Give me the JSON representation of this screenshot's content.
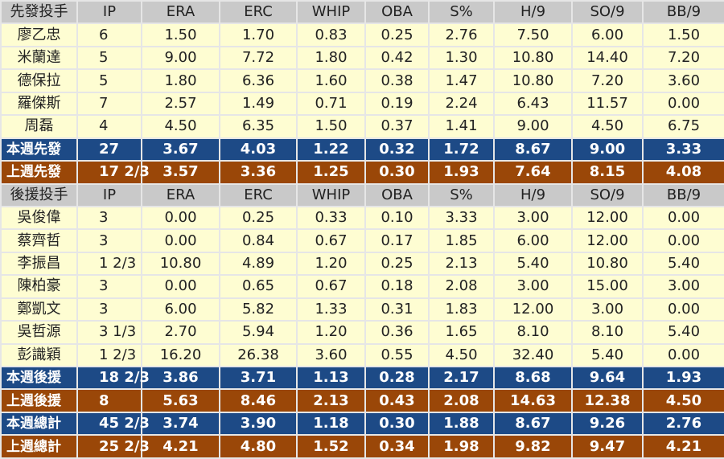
{
  "columns": [
    "IP",
    "ERA",
    "ERC",
    "WHIP",
    "OBA",
    "S%",
    "H/9",
    "SO/9",
    "BB/9"
  ],
  "colors": {
    "header": "#c9c9c9",
    "player": "#fefdd2",
    "this_week": "#1d4a86",
    "last_week": "#9a4708"
  },
  "rows": [
    {
      "type": "hdr",
      "cells": [
        "先發投手",
        "IP",
        "ERA",
        "ERC",
        "WHIP",
        "OBA",
        "S%",
        "H/9",
        "SO/9",
        "BB/9"
      ]
    },
    {
      "type": "player",
      "cells": [
        "廖乙忠",
        "6",
        "1.50",
        "1.70",
        "0.83",
        "0.25",
        "2.76",
        "7.50",
        "6.00",
        "1.50"
      ]
    },
    {
      "type": "player",
      "cells": [
        "米蘭達",
        "5",
        "9.00",
        "7.72",
        "1.80",
        "0.42",
        "1.30",
        "10.80",
        "14.40",
        "7.20"
      ]
    },
    {
      "type": "player",
      "cells": [
        "德保拉",
        "5",
        "1.80",
        "6.36",
        "1.60",
        "0.38",
        "1.47",
        "10.80",
        "7.20",
        "3.60"
      ]
    },
    {
      "type": "player",
      "cells": [
        "羅傑斯",
        "7",
        "2.57",
        "1.49",
        "0.71",
        "0.19",
        "2.24",
        "6.43",
        "11.57",
        "0.00"
      ]
    },
    {
      "type": "player",
      "cells": [
        "周磊",
        "4",
        "4.50",
        "6.35",
        "1.50",
        "0.37",
        "1.41",
        "9.00",
        "4.50",
        "6.75"
      ]
    },
    {
      "type": "blue",
      "cells": [
        "本週先發",
        "27",
        "3.67",
        "4.03",
        "1.22",
        "0.32",
        "1.72",
        "8.67",
        "9.00",
        "3.33"
      ]
    },
    {
      "type": "brown",
      "cells": [
        "上週先發",
        "17 2/3",
        "3.57",
        "3.36",
        "1.25",
        "0.30",
        "1.93",
        "7.64",
        "8.15",
        "4.08"
      ]
    },
    {
      "type": "hdr",
      "cells": [
        "後援投手",
        "IP",
        "ERA",
        "ERC",
        "WHIP",
        "OBA",
        "S%",
        "H/9",
        "SO/9",
        "BB/9"
      ]
    },
    {
      "type": "player",
      "cells": [
        "吳俊偉",
        "3",
        "0.00",
        "0.25",
        "0.33",
        "0.10",
        "3.33",
        "3.00",
        "12.00",
        "0.00"
      ]
    },
    {
      "type": "player",
      "cells": [
        "蔡齊哲",
        "3",
        "0.00",
        "0.84",
        "0.67",
        "0.17",
        "1.85",
        "6.00",
        "12.00",
        "0.00"
      ]
    },
    {
      "type": "player",
      "cells": [
        "李振昌",
        "1 2/3",
        "10.80",
        "4.89",
        "1.20",
        "0.25",
        "2.13",
        "5.40",
        "10.80",
        "5.40"
      ]
    },
    {
      "type": "player",
      "cells": [
        "陳柏豪",
        "3",
        "0.00",
        "0.65",
        "0.67",
        "0.18",
        "2.08",
        "3.00",
        "15.00",
        "3.00"
      ]
    },
    {
      "type": "player",
      "cells": [
        "鄭凱文",
        "3",
        "6.00",
        "5.82",
        "1.33",
        "0.31",
        "1.83",
        "12.00",
        "3.00",
        "0.00"
      ]
    },
    {
      "type": "player",
      "cells": [
        "吳哲源",
        "3 1/3",
        "2.70",
        "5.94",
        "1.20",
        "0.36",
        "1.65",
        "8.10",
        "8.10",
        "5.40"
      ]
    },
    {
      "type": "player",
      "cells": [
        "彭識穎",
        "1 2/3",
        "16.20",
        "26.38",
        "3.60",
        "0.55",
        "4.50",
        "32.40",
        "5.40",
        "0.00"
      ]
    },
    {
      "type": "blue",
      "cells": [
        "本週後援",
        "18 2/3",
        "3.86",
        "3.71",
        "1.13",
        "0.28",
        "2.17",
        "8.68",
        "9.64",
        "1.93"
      ]
    },
    {
      "type": "brown",
      "cells": [
        "上週後援",
        "8",
        "5.63",
        "8.46",
        "2.13",
        "0.43",
        "2.08",
        "14.63",
        "12.38",
        "4.50"
      ]
    },
    {
      "type": "blue",
      "cells": [
        "本週總計",
        "45 2/3",
        "3.74",
        "3.90",
        "1.18",
        "0.30",
        "1.88",
        "8.67",
        "9.26",
        "2.76"
      ]
    },
    {
      "type": "brown",
      "cells": [
        "上週總計",
        "25 2/3",
        "4.21",
        "4.80",
        "1.52",
        "0.34",
        "1.98",
        "9.82",
        "9.47",
        "4.21"
      ]
    }
  ]
}
